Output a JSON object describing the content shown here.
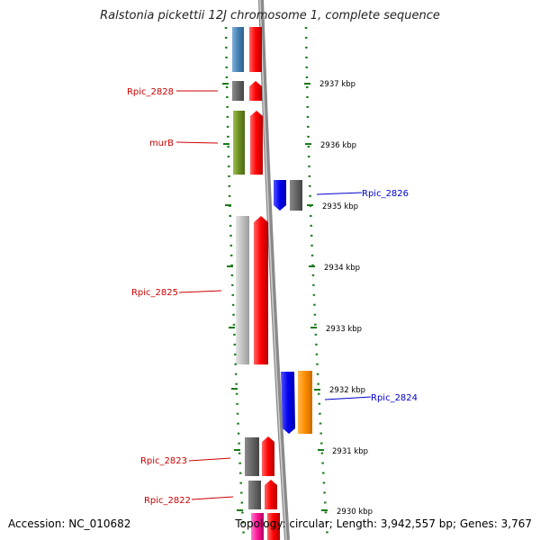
{
  "title": "Ralstonia pickettii 12J chromosome 1, complete sequence",
  "footer": {
    "accession": "Accession: NC_010682",
    "topology": "Topology: circular; Length: 3,942,557 bp; Genes: 3,767"
  },
  "colors": {
    "gene_label_reverse": "#cc0000",
    "gene_label_forward": "#0000cc",
    "tick_green": "#1a7a1a",
    "backbone": "#888888"
  },
  "scale_ticks": [
    {
      "label": "2937 kbp"
    },
    {
      "label": "2936 kbp"
    },
    {
      "label": "2935 kbp"
    },
    {
      "label": "2934 kbp"
    },
    {
      "label": "2933 kbp"
    },
    {
      "label": "2932 kbp"
    },
    {
      "label": "2931 kbp"
    },
    {
      "label": "2930 kbp"
    }
  ],
  "gene_labels": [
    {
      "name": "Rpic_2828",
      "strand": "reverse"
    },
    {
      "name": "murB",
      "strand": "reverse"
    },
    {
      "name": "Rpic_2826",
      "strand": "forward"
    },
    {
      "name": "Rpic_2825",
      "strand": "reverse"
    },
    {
      "name": "Rpic_2824",
      "strand": "forward"
    },
    {
      "name": "Rpic_2823",
      "strand": "reverse"
    },
    {
      "name": "Rpic_2822",
      "strand": "reverse"
    }
  ]
}
